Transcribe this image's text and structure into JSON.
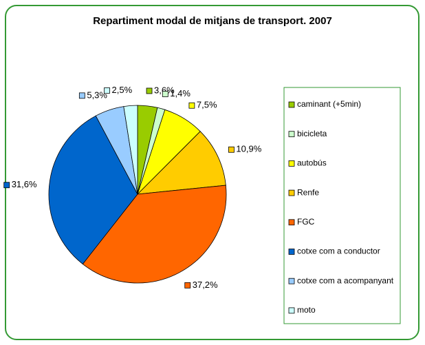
{
  "chart_data": {
    "type": "pie",
    "title": "Repartiment modal de mitjans de transport. 2007",
    "categories": [
      "caminant (+5min)",
      "bicicleta",
      "autobús",
      "Renfe",
      "FGC",
      "cotxe com a conductor",
      "cotxe com a acompanyant",
      "moto"
    ],
    "values": [
      3.6,
      1.4,
      7.5,
      10.9,
      37.2,
      31.6,
      5.3,
      2.5
    ],
    "value_labels": [
      "3,6%",
      "1,4%",
      "7,5%",
      "10,9%",
      "37,2%",
      "31,6%",
      "5,3%",
      "2,5%"
    ],
    "colors": [
      "#99cc00",
      "#ccffcc",
      "#ffff00",
      "#ffcc00",
      "#ff6600",
      "#0066cc",
      "#99ccff",
      "#ccffff"
    ],
    "legend": "right"
  }
}
